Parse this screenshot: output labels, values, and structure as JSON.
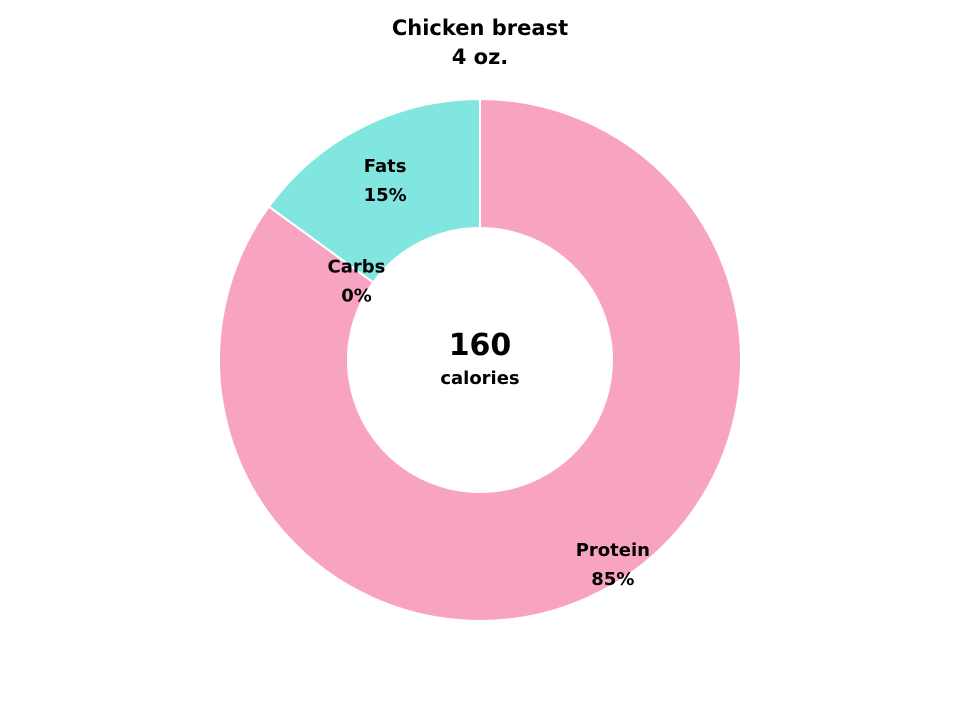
{
  "chart_data": {
    "type": "pie",
    "title": "Chicken breast",
    "subtitle": "4 oz.",
    "center_value": "160",
    "center_label": "calories",
    "colors": {
      "Protein": "#f9a3c3",
      "Fats": "#82e6e0",
      "Carbs": "#f4a261"
    },
    "slices": [
      {
        "label": "Protein",
        "value": 85,
        "display": "85%"
      },
      {
        "label": "Carbs",
        "value": 0,
        "display": "0%"
      },
      {
        "label": "Fats",
        "value": 15,
        "display": "15%"
      }
    ]
  }
}
